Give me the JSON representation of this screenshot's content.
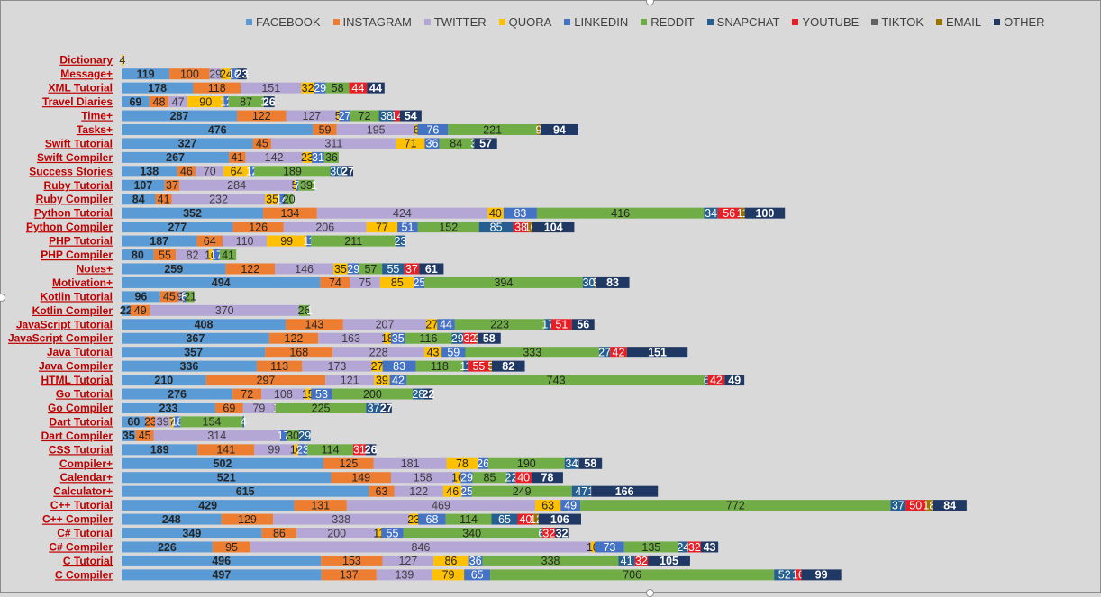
{
  "chart_data": {
    "type": "stacked-bar-horizontal",
    "legend_position": "top",
    "grid": false,
    "xlim": [
      0,
      2425
    ],
    "series": [
      {
        "name": "FACEBOOK",
        "color": "#5b9bd5",
        "values": [
          0,
          119,
          178,
          69,
          287,
          476,
          327,
          267,
          138,
          107,
          84,
          352,
          277,
          187,
          80,
          259,
          494,
          96,
          22,
          408,
          367,
          357,
          336,
          210,
          276,
          233,
          60,
          35,
          189,
          502,
          521,
          615,
          429,
          248,
          349,
          226,
          496,
          497
        ]
      },
      {
        "name": "INSTAGRAM",
        "color": "#ed7d31",
        "values": [
          0,
          100,
          118,
          48,
          122,
          59,
          45,
          41,
          46,
          37,
          41,
          134,
          126,
          64,
          55,
          122,
          74,
          45,
          49,
          143,
          122,
          168,
          113,
          297,
          72,
          69,
          23,
          45,
          141,
          125,
          149,
          63,
          131,
          129,
          86,
          95,
          153,
          137
        ]
      },
      {
        "name": "TWITTER",
        "color": "#b4a7d6",
        "values": [
          0,
          29,
          151,
          47,
          127,
          195,
          311,
          142,
          70,
          284,
          232,
          424,
          206,
          110,
          82,
          146,
          75,
          9,
          370,
          207,
          163,
          228,
          173,
          121,
          108,
          79,
          39,
          314,
          99,
          181,
          158,
          122,
          469,
          338,
          200,
          846,
          127,
          139
        ]
      },
      {
        "name": "QUORA",
        "color": "#ffc000",
        "values": [
          4,
          24,
          32,
          90,
          5,
          6,
          71,
          23,
          64,
          5,
          35,
          40,
          77,
          99,
          10,
          35,
          85,
          2,
          0,
          27,
          18,
          43,
          27,
          39,
          15,
          1,
          7,
          0,
          10,
          78,
          16,
          46,
          63,
          23,
          11,
          10,
          86,
          79
        ]
      },
      {
        "name": "LINKEDIN",
        "color": "#4472c4",
        "values": [
          0,
          16,
          29,
          12,
          27,
          76,
          36,
          31,
          12,
          7,
          14,
          83,
          51,
          11,
          17,
          29,
          25,
          8,
          0,
          44,
          35,
          59,
          83,
          42,
          53,
          1,
          18,
          17,
          23,
          26,
          29,
          25,
          49,
          68,
          55,
          73,
          36,
          65
        ]
      },
      {
        "name": "REDDIT",
        "color": "#70ad47",
        "values": [
          0,
          0,
          58,
          87,
          72,
          221,
          84,
          36,
          189,
          39,
          20,
          416,
          152,
          211,
          41,
          57,
          394,
          21,
          26,
          223,
          116,
          333,
          118,
          743,
          200,
          225,
          154,
          30,
          114,
          190,
          85,
          249,
          772,
          114,
          340,
          135,
          338,
          706
        ]
      },
      {
        "name": "SNAPCHAT",
        "color": "#255e91",
        "values": [
          0,
          0,
          0,
          1,
          38,
          0,
          3,
          0,
          30,
          1,
          0,
          34,
          85,
          23,
          0,
          55,
          30,
          0,
          1,
          17,
          29,
          27,
          11,
          6,
          28,
          37,
          4,
          29,
          0,
          34,
          22,
          47,
          37,
          65,
          6,
          24,
          41,
          52
        ]
      },
      {
        "name": "YOUTUBE",
        "color": "#e81e25",
        "values": [
          0,
          0,
          44,
          0,
          14,
          0,
          0,
          0,
          0,
          0,
          0,
          56,
          38,
          0,
          0,
          37,
          0,
          0,
          0,
          51,
          32,
          42,
          55,
          42,
          0,
          0,
          0,
          0,
          31,
          1,
          40,
          0,
          50,
          40,
          32,
          32,
          32,
          16
        ]
      },
      {
        "name": "TIKTOK",
        "color": "#636363",
        "values": [
          0,
          0,
          0,
          0,
          0,
          0,
          0,
          0,
          0,
          0,
          0,
          0,
          0,
          0,
          0,
          0,
          0,
          0,
          0,
          0,
          0,
          0,
          0,
          0,
          0,
          0,
          0,
          0,
          0,
          0,
          0,
          0,
          0,
          0,
          0,
          0,
          0,
          0
        ]
      },
      {
        "name": "EMAIL",
        "color": "#997300",
        "values": [
          0,
          0,
          0,
          0,
          0,
          9,
          0,
          0,
          0,
          0,
          0,
          11,
          10,
          0,
          0,
          0,
          3,
          0,
          0,
          0,
          3,
          0,
          5,
          0,
          0,
          0,
          0,
          0,
          0,
          0,
          0,
          1,
          18,
          12,
          0,
          0,
          0,
          0
        ]
      },
      {
        "name": "OTHER",
        "color": "#203864",
        "values": [
          0,
          23,
          44,
          26,
          54,
          94,
          57,
          0,
          27,
          0,
          0,
          100,
          104,
          0,
          0,
          61,
          83,
          0,
          0,
          56,
          58,
          151,
          82,
          49,
          22,
          27,
          0,
          0,
          26,
          58,
          78,
          166,
          84,
          106,
          32,
          43,
          105,
          99
        ]
      }
    ],
    "categories": [
      "Dictionary",
      "Message+",
      "XML Tutorial",
      "Travel Diaries",
      "Time+",
      "Tasks+",
      "Swift Tutorial",
      "Swift Compiler",
      "Success Stories",
      "Ruby Tutorial",
      "Ruby Compiler",
      "Python Tutorial",
      "Python Compiler",
      "PHP Tutorial",
      "PHP Compiler",
      "Notes+",
      "Motivation+",
      "Kotlin Tutorial",
      "Kotlin Compiler",
      "JavaScript Tutorial",
      "JavaScript Compiler",
      "Java Tutorial",
      "Java Compiler",
      "HTML Tutorial",
      "Go Tutorial",
      "Go Compiler",
      "Dart Tutorial",
      "Dart Compiler",
      "CSS Tutorial",
      "Compiler+",
      "Calendar+",
      "Calculator+",
      "C++ Tutorial",
      "C++ Compiler",
      "C# Tutorial",
      "C# Compiler",
      "C Tutorial",
      "C Compiler"
    ]
  }
}
